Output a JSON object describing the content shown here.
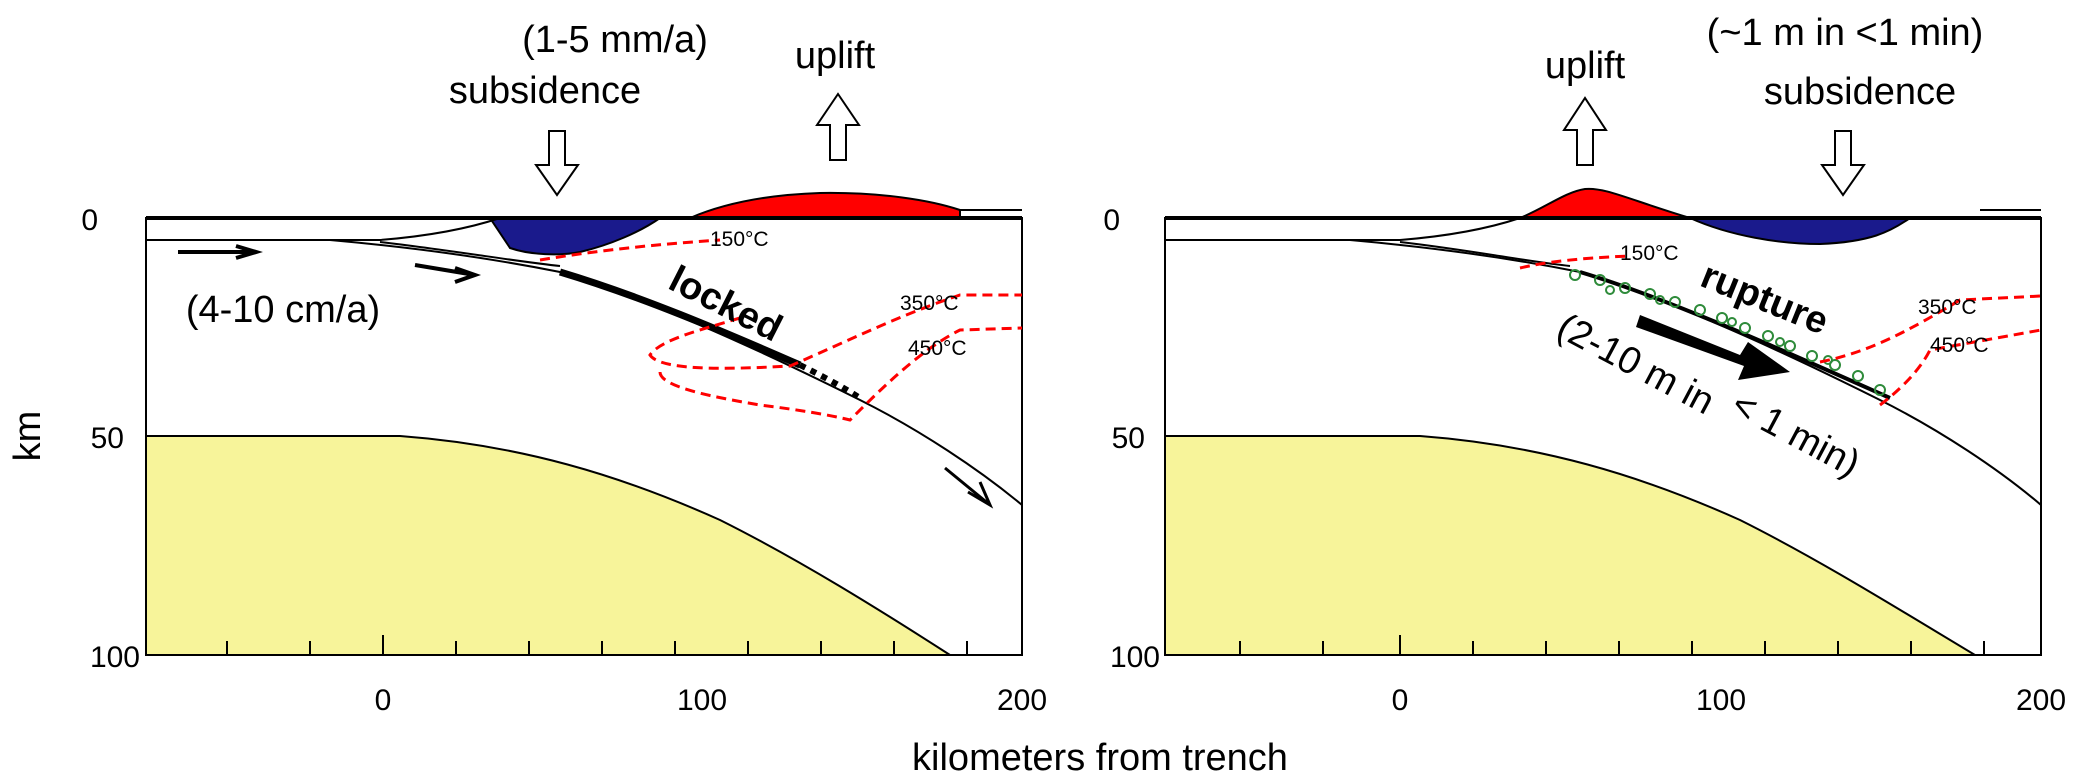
{
  "x_axis_label": "kilometers from trench",
  "y_axis_label": "km",
  "x_ticks": [
    "0",
    "100",
    "200"
  ],
  "y_ticks": [
    "0",
    "50",
    "100"
  ],
  "colors": {
    "uplift": "#ff0000",
    "subsidence": "#1a1a8c",
    "mantle": "#f7f49a",
    "isotherm": "#ff0000",
    "rupture_markers": "#2e8b3a"
  },
  "left_panel": {
    "rate_subsidence": "(1-5 mm/a)",
    "subsidence_label": "subsidence",
    "uplift_label": "uplift",
    "convergence_rate": "(4-10 cm/a)",
    "fault_label": "locked",
    "isotherm_150": "150°C",
    "isotherm_350": "350°C",
    "isotherm_450": "450°C"
  },
  "right_panel": {
    "uplift_label": "uplift",
    "rate_subsidence": "(~1 m in <1 min)",
    "subsidence_label": "subsidence",
    "fault_label": "rupture",
    "slip_line1": "(2-10 m in",
    "slip_line2": "< 1 min)",
    "isotherm_150": "150°C",
    "isotherm_350": "350°C",
    "isotherm_450": "450°C"
  }
}
